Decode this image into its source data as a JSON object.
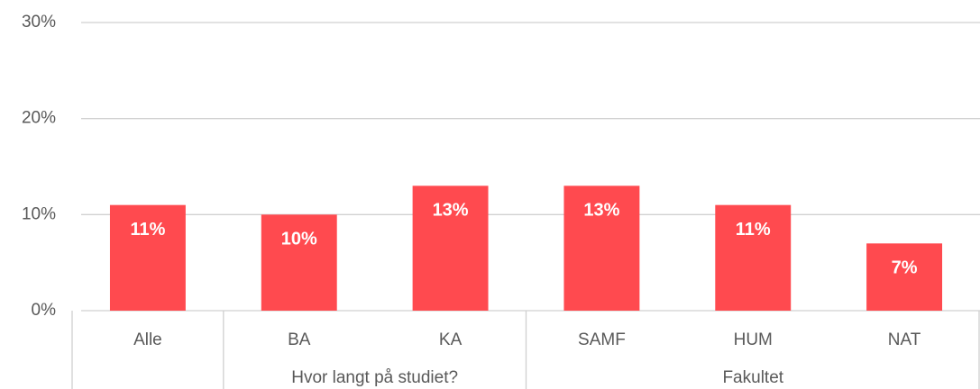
{
  "chart_data": {
    "type": "bar",
    "categories": [
      "Alle",
      "BA",
      "KA",
      "SAMF",
      "HUM",
      "NAT"
    ],
    "values": [
      11,
      10,
      13,
      13,
      11,
      7
    ],
    "value_labels": [
      "11%",
      "10%",
      "13%",
      "13%",
      "11%",
      "7%"
    ],
    "color": "#ff4a4f",
    "groups": [
      {
        "name": "Hvor langt på studiet?",
        "categories": [
          "BA",
          "KA"
        ]
      },
      {
        "name": "Fakultet",
        "categories": [
          "SAMF",
          "HUM",
          "NAT"
        ]
      }
    ],
    "ylim": [
      0,
      30
    ],
    "yticks": [
      {
        "value": 0,
        "label": "0%"
      },
      {
        "value": 10,
        "label": "10%"
      },
      {
        "value": 20,
        "label": "20%"
      },
      {
        "value": 30,
        "label": "30%"
      }
    ],
    "grid": true
  }
}
